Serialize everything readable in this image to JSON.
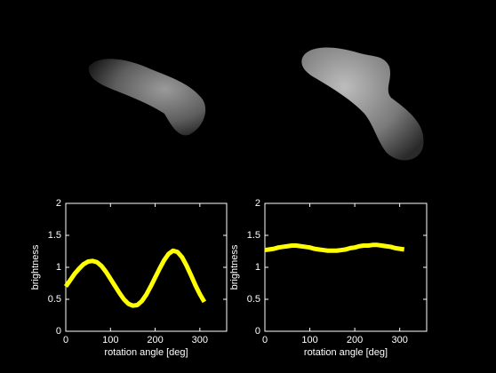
{
  "chart_data": [
    {
      "type": "line",
      "xlabel": "rotation angle [deg]",
      "ylabel": "brightness",
      "x": [
        0,
        10,
        20,
        30,
        40,
        50,
        60,
        70,
        80,
        90,
        100,
        110,
        120,
        130,
        140,
        150,
        160,
        170,
        180,
        190,
        200,
        210,
        220,
        230,
        240,
        250,
        260,
        270,
        280,
        290,
        300,
        310
      ],
      "values": [
        0.7,
        0.8,
        0.9,
        0.98,
        1.05,
        1.09,
        1.1,
        1.08,
        1.02,
        0.93,
        0.82,
        0.71,
        0.6,
        0.5,
        0.43,
        0.4,
        0.41,
        0.47,
        0.57,
        0.7,
        0.84,
        0.98,
        1.11,
        1.21,
        1.26,
        1.24,
        1.16,
        1.03,
        0.88,
        0.72,
        0.58,
        0.46
      ],
      "color": "#ffff00",
      "xlim": [
        0,
        360
      ],
      "ylim": [
        0,
        2
      ],
      "xticks": [
        0,
        100,
        200,
        300
      ],
      "yticks": [
        0,
        0.5,
        1,
        1.5,
        2
      ]
    },
    {
      "type": "line",
      "xlabel": "rotation angle [deg]",
      "ylabel": "brightness",
      "x": [
        0,
        10,
        20,
        30,
        40,
        50,
        60,
        70,
        80,
        90,
        100,
        110,
        120,
        130,
        140,
        150,
        160,
        170,
        180,
        190,
        200,
        210,
        220,
        230,
        240,
        250,
        260,
        270,
        280,
        290,
        300,
        310
      ],
      "values": [
        1.27,
        1.28,
        1.29,
        1.31,
        1.32,
        1.33,
        1.34,
        1.34,
        1.33,
        1.32,
        1.31,
        1.29,
        1.28,
        1.27,
        1.26,
        1.26,
        1.26,
        1.27,
        1.28,
        1.3,
        1.31,
        1.33,
        1.34,
        1.34,
        1.35,
        1.35,
        1.34,
        1.33,
        1.32,
        1.3,
        1.29,
        1.28
      ],
      "color": "#ffff00",
      "xlim": [
        0,
        360
      ],
      "ylim": [
        0,
        2
      ],
      "xticks": [
        0,
        100,
        200,
        300
      ],
      "yticks": [
        0,
        0.5,
        1,
        1.5,
        2
      ]
    }
  ]
}
